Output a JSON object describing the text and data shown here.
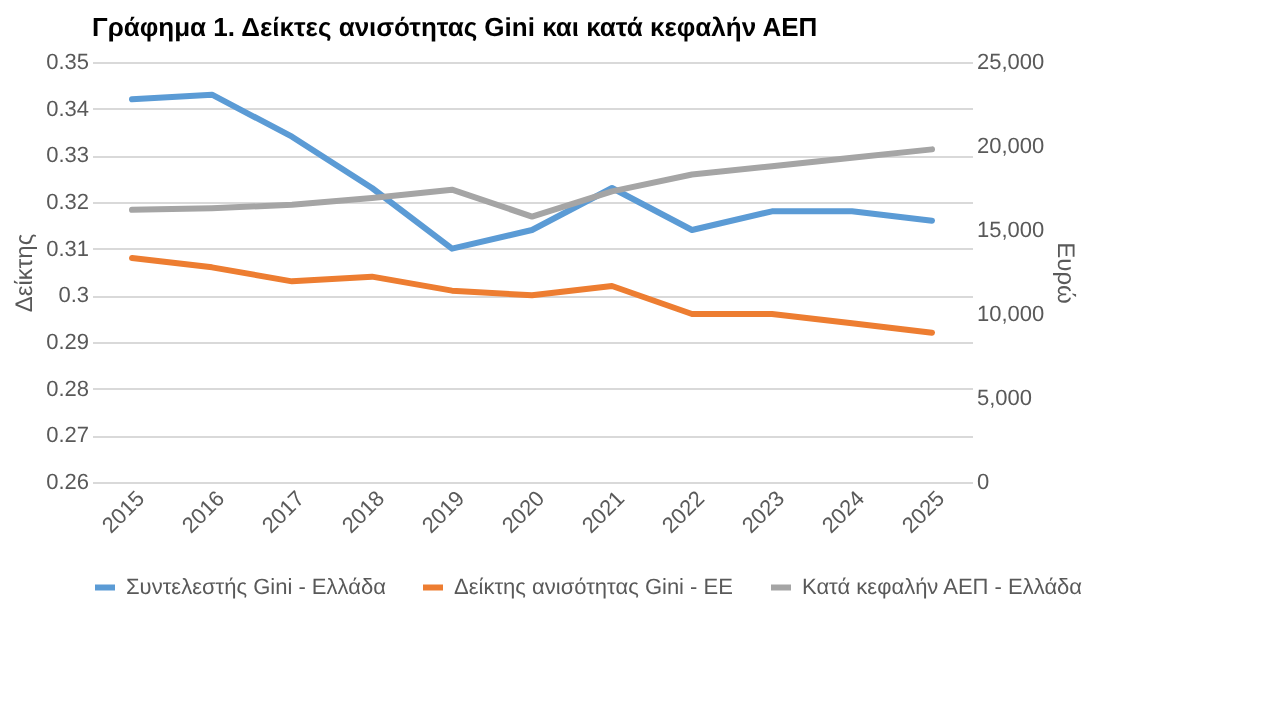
{
  "chart_data": {
    "type": "line",
    "title": "Γράφημα 1. Δείκτες ανισότητας Gini και κατά κεφαλήν ΑΕΠ",
    "categories": [
      "2015",
      "2016",
      "2017",
      "2018",
      "2019",
      "2020",
      "2021",
      "2022",
      "2023",
      "2024",
      "2025"
    ],
    "series": [
      {
        "name": "Συντελεστής Gini - Ελλάδα",
        "color": "#5b9bd5",
        "values": [
          0.342,
          0.343,
          0.334,
          0.323,
          0.31,
          0.314,
          0.323,
          0.314,
          0.318,
          0.318,
          0.316
        ]
      },
      {
        "name": "Δείκτης ανισότητας Gini - ΕΕ",
        "color": "#ed7d31",
        "values": [
          0.308,
          0.306,
          0.303,
          0.304,
          0.301,
          0.3,
          0.302,
          0.296,
          0.296,
          0.294,
          0.292
        ]
      },
      {
        "name": "Κατά κεφαλήν ΑΕΠ - Ελλάδα",
        "color": "#a5a5a5",
        "axis": "y2",
        "values": [
          16200,
          16300,
          16500,
          16900,
          17400,
          15800,
          17300,
          18300,
          18800,
          19300,
          19800
        ]
      }
    ],
    "ylabel": "Δείκτης",
    "y2label": "Ευρώ",
    "ylim": [
      0.26,
      0.35
    ],
    "yticks": [
      0.26,
      0.27,
      0.28,
      0.29,
      {
        "value": 0.3,
        "label": "0.3"
      },
      0.31,
      0.32,
      0.33,
      0.34,
      0.35
    ],
    "y2lim": [
      0,
      25000
    ],
    "y2ticks": [
      {
        "value": 0,
        "label": "0"
      },
      {
        "value": 5000,
        "label": "5,000"
      },
      {
        "value": 10000,
        "label": "10,000"
      },
      {
        "value": 15000,
        "label": "15,000"
      },
      {
        "value": 20000,
        "label": "20,000"
      },
      {
        "value": 25000,
        "label": "25,000"
      }
    ],
    "grid": "y",
    "legend": "bottom",
    "marker": "none",
    "line_style": "solid"
  }
}
